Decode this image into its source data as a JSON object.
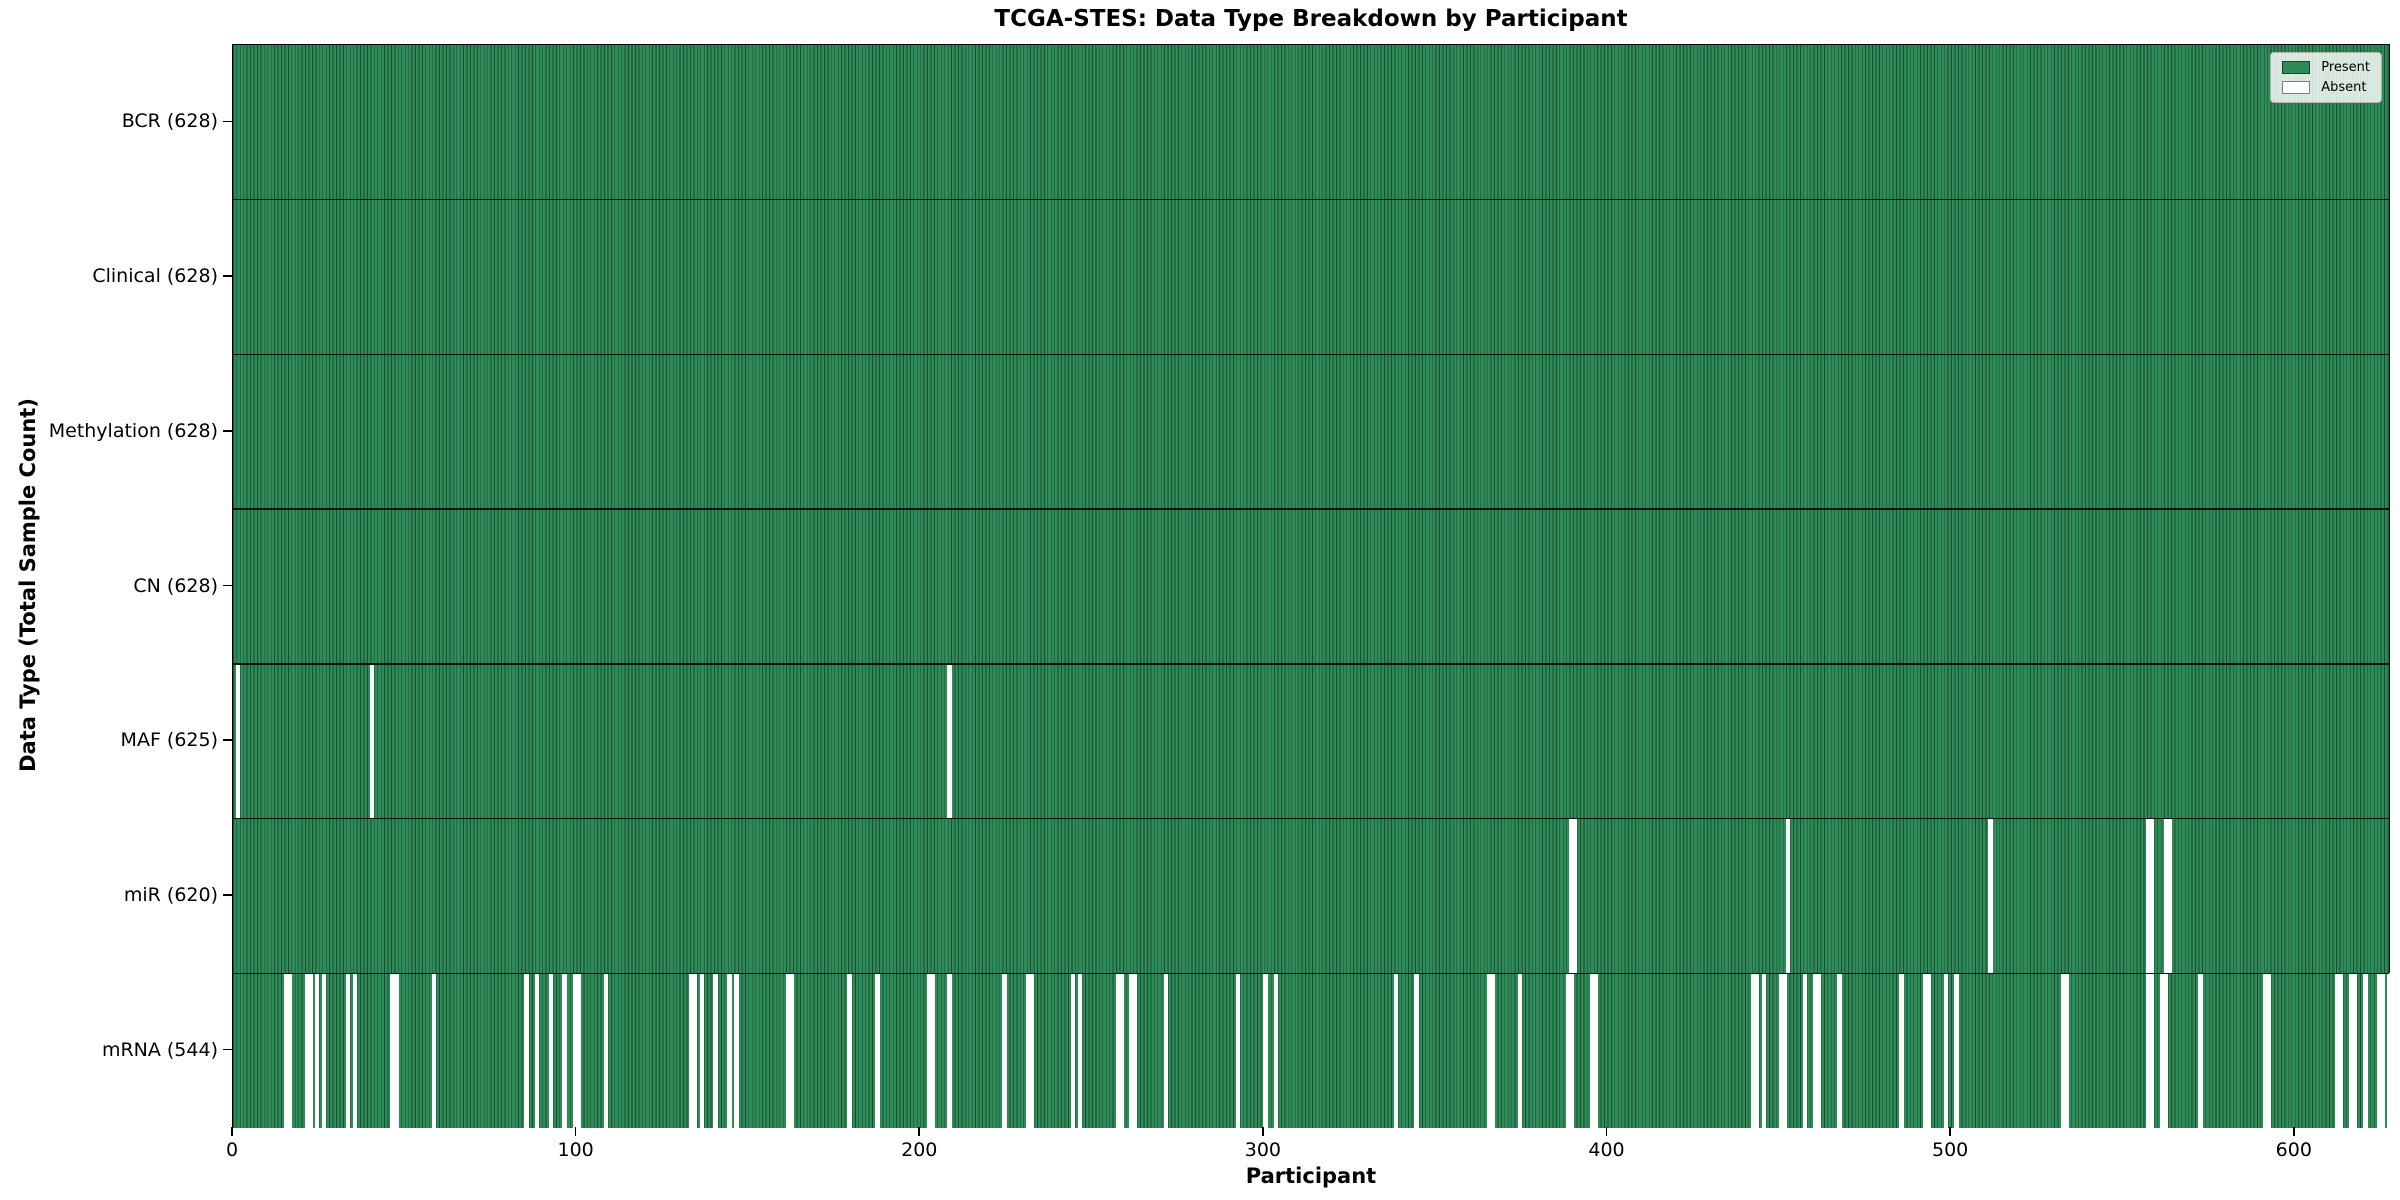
{
  "chart_data": {
    "type": "heatmap",
    "title": "TCGA-STES: Data Type Breakdown by Participant",
    "xlabel": "Participant",
    "ylabel": "Data Type (Total Sample Count)",
    "n_participants": 628,
    "x_ticks": [
      0,
      100,
      200,
      300,
      400,
      500,
      600
    ],
    "legend_position": "upper right",
    "grid": "row separators only",
    "colors": {
      "present": "#2e8b57",
      "absent": "#ffffff",
      "cell_edge": "rgba(0,0,0,0.45)",
      "row_separator": "#101010"
    },
    "legend": [
      {
        "label": "Present",
        "value": "present"
      },
      {
        "label": "Absent",
        "value": "absent"
      }
    ],
    "rows": [
      {
        "label": "BCR (628)",
        "data_type": "BCR",
        "present_count": 628,
        "absent_participants": []
      },
      {
        "label": "Clinical (628)",
        "data_type": "Clinical",
        "present_count": 628,
        "absent_participants": []
      },
      {
        "label": "Methylation (628)",
        "data_type": "Methylation",
        "present_count": 628,
        "absent_participants": []
      },
      {
        "label": "CN (628)",
        "data_type": "CN",
        "present_count": 628,
        "absent_participants": []
      },
      {
        "label": "MAF (625)",
        "data_type": "MAF",
        "present_count": 625,
        "absent_participants": [
          1,
          40,
          208
        ]
      },
      {
        "label": "miR (620)",
        "data_type": "miR",
        "present_count": 620,
        "absent_participants": [
          389,
          390,
          452,
          511,
          557,
          558,
          562,
          563
        ]
      },
      {
        "label": "mRNA (544)",
        "data_type": "mRNA",
        "present_count": 544,
        "absent_participants": [
          15,
          16,
          21,
          22,
          24,
          26,
          33,
          35,
          46,
          47,
          58,
          85,
          88,
          92,
          96,
          99,
          100,
          108,
          133,
          134,
          136,
          140,
          144,
          146,
          161,
          162,
          179,
          187,
          202,
          203,
          208,
          224,
          231,
          232,
          244,
          246,
          257,
          258,
          261,
          262,
          271,
          292,
          300,
          303,
          338,
          344,
          365,
          366,
          374,
          388,
          389,
          395,
          396,
          442,
          443,
          445,
          450,
          451,
          457,
          460,
          461,
          467,
          485,
          492,
          493,
          498,
          501,
          532,
          533,
          557,
          558,
          561,
          562,
          572,
          591,
          592,
          612,
          613,
          616,
          617,
          620,
          624,
          625,
          627
        ]
      }
    ]
  }
}
